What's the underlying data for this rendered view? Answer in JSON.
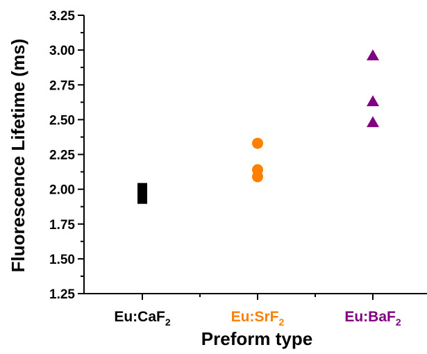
{
  "chart_data": {
    "type": "scatter",
    "title": "",
    "xlabel": "Preform type",
    "ylabel": "Fluorescence Lifetime (ms)",
    "ylim": [
      1.25,
      3.25
    ],
    "yticks": [
      "1.25",
      "1.50",
      "1.75",
      "2.00",
      "2.25",
      "2.50",
      "2.75",
      "3.00",
      "3.25"
    ],
    "grid": false,
    "categories": [
      {
        "base": "Eu:CaF",
        "sub": "2",
        "color": "#000000"
      },
      {
        "base": "Eu:SrF",
        "sub": "2",
        "color": "#ff8000"
      },
      {
        "base": "Eu:BaF",
        "sub": "2",
        "color": "#800080"
      }
    ],
    "series": [
      {
        "category": 0,
        "marker": "square",
        "color": "#000000",
        "values": [
          1.93,
          1.97,
          2.01
        ]
      },
      {
        "category": 1,
        "marker": "circle",
        "color": "#ff8000",
        "values": [
          2.09,
          2.14,
          2.33
        ]
      },
      {
        "category": 2,
        "marker": "triangle",
        "color": "#800080",
        "values": [
          2.48,
          2.63,
          2.96
        ]
      }
    ]
  }
}
